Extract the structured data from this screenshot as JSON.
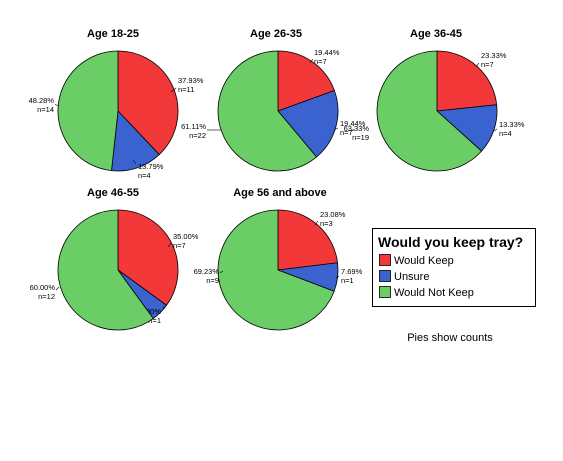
{
  "chart_data": {
    "type": "pie",
    "categories": [
      "Would Keep",
      "Unsure",
      "Would Not Keep"
    ],
    "colors": {
      "Would Keep": "#f23838",
      "Unsure": "#3a63d0",
      "Would Not Keep": "#6acd66"
    },
    "pies": [
      {
        "title": "Age 18-25",
        "slices": [
          {
            "category": "Would Keep",
            "value": 11,
            "percent_label": "37.93%",
            "count_label": "n=11"
          },
          {
            "category": "Unsure",
            "value": 4,
            "percent_label": "13.79%",
            "count_label": "n=4"
          },
          {
            "category": "Would Not Keep",
            "value": 14,
            "percent_label": "48.28%",
            "count_label": "n=14"
          }
        ]
      },
      {
        "title": "Age 26-35",
        "slices": [
          {
            "category": "Would Keep",
            "value": 7,
            "percent_label": "19.44%",
            "count_label": "n=7"
          },
          {
            "category": "Unsure",
            "value": 7,
            "percent_label": "19.44%",
            "count_label": "n=7"
          },
          {
            "category": "Would Not Keep",
            "value": 22,
            "percent_label": "61.11%",
            "count_label": "n=22"
          }
        ]
      },
      {
        "title": "Age 36-45",
        "slices": [
          {
            "category": "Would Keep",
            "value": 7,
            "percent_label": "23.33%",
            "count_label": "n=7"
          },
          {
            "category": "Unsure",
            "value": 4,
            "percent_label": "13.33%",
            "count_label": "n=4"
          },
          {
            "category": "Would Not Keep",
            "value": 19,
            "percent_label": "63.33%",
            "count_label": "n=19"
          }
        ]
      },
      {
        "title": "Age 46-55",
        "slices": [
          {
            "category": "Would Keep",
            "value": 7,
            "percent_label": "35.00%",
            "count_label": "n=7"
          },
          {
            "category": "Unsure",
            "value": 1,
            "percent_label": "5.00%",
            "count_label": "n=1"
          },
          {
            "category": "Would Not Keep",
            "value": 12,
            "percent_label": "60.00%",
            "count_label": "n=12"
          }
        ]
      },
      {
        "title": "Age 56 and above",
        "slices": [
          {
            "category": "Would Keep",
            "value": 3,
            "percent_label": "23.08%",
            "count_label": "n=3"
          },
          {
            "category": "Unsure",
            "value": 1,
            "percent_label": "7.69%",
            "count_label": "n=1"
          },
          {
            "category": "Would Not Keep",
            "value": 9,
            "percent_label": "69.23%",
            "count_label": "n=9"
          }
        ]
      }
    ],
    "legend": {
      "title": "Would you keep tray?",
      "items": [
        "Would Keep",
        "Unsure",
        "Would Not Keep"
      ],
      "placement": "right"
    },
    "note": "Pies show counts"
  }
}
